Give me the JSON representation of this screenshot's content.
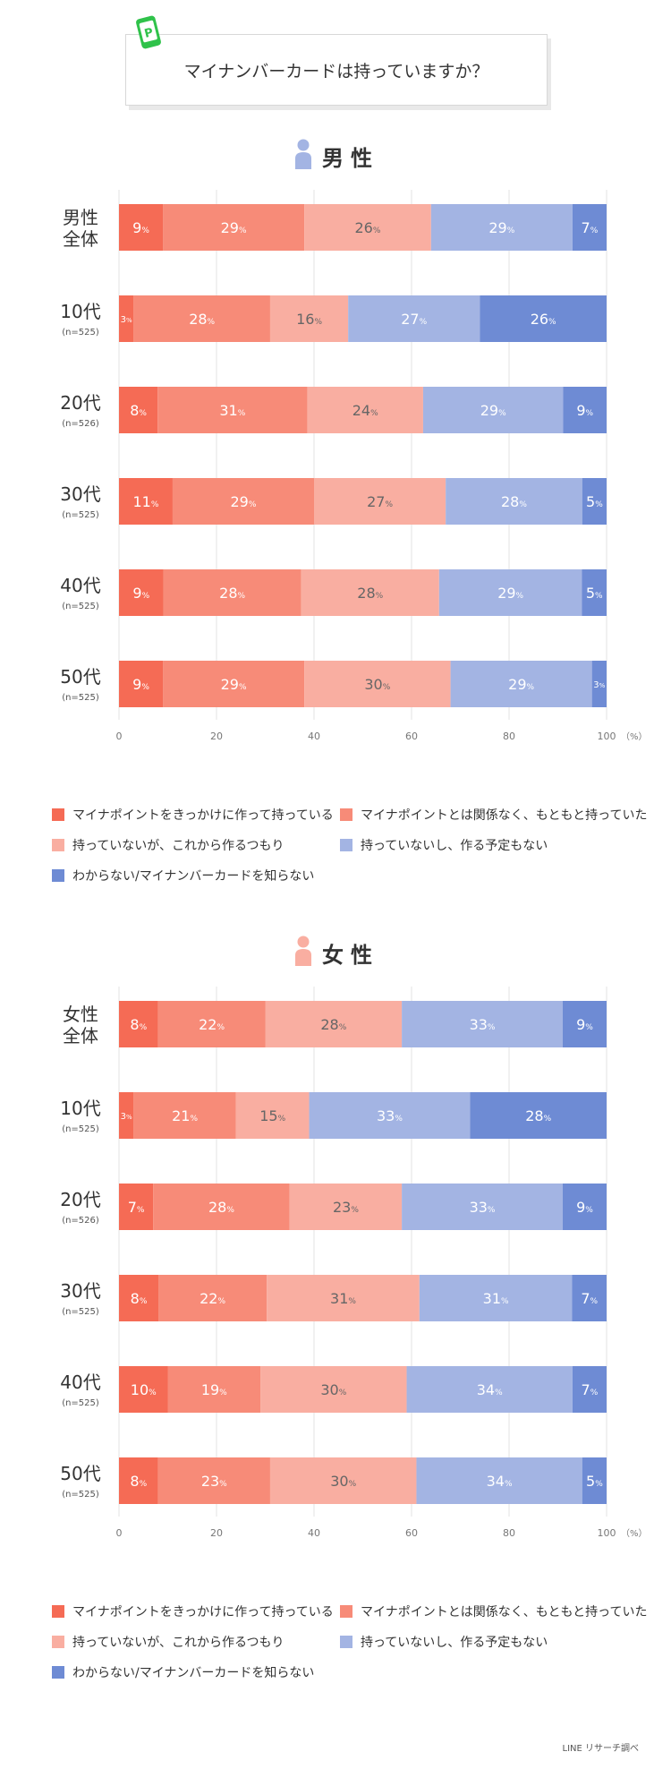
{
  "title": "マイナンバーカードは持っていますか？",
  "source": "LINE リサーチ調べ",
  "colors": [
    "#f56b55",
    "#f78b78",
    "#f9aea1",
    "#a3b4e3",
    "#6e8bd4"
  ],
  "legend": [
    "マイナポイントをきっかけに作って持っている",
    "マイナポイントとは関係なく、もともと持っていた",
    "持っていないが、これから作るつもり",
    "持っていないし、作る予定もない",
    "わからない/マイナンバーカードを知らない"
  ],
  "chart_data": [
    {
      "type": "bar",
      "orientation": "horizontal",
      "stacked": true,
      "title": "男性",
      "xlim": [
        0,
        100
      ],
      "xticks": [
        "0",
        "20",
        "40",
        "60",
        "80",
        "100"
      ],
      "xunit": "（%）",
      "grid": true,
      "categories": [
        {
          "label": "男性\n全体",
          "n": ""
        },
        {
          "label": "10代",
          "n": "(n=525)"
        },
        {
          "label": "20代",
          "n": "(n=526)"
        },
        {
          "label": "30代",
          "n": "(n=525)"
        },
        {
          "label": "40代",
          "n": "(n=525)"
        },
        {
          "label": "50代",
          "n": "(n=525)"
        }
      ],
      "rows": [
        [
          9,
          29,
          26,
          29,
          7
        ],
        [
          3,
          28,
          16,
          27,
          26
        ],
        [
          8,
          31,
          24,
          29,
          9
        ],
        [
          11,
          29,
          27,
          28,
          5
        ],
        [
          9,
          28,
          28,
          29,
          5
        ],
        [
          9,
          29,
          30,
          29,
          3
        ]
      ]
    },
    {
      "type": "bar",
      "orientation": "horizontal",
      "stacked": true,
      "title": "女性",
      "xlim": [
        0,
        100
      ],
      "xticks": [
        "0",
        "20",
        "40",
        "60",
        "80",
        "100"
      ],
      "xunit": "（%）",
      "grid": true,
      "categories": [
        {
          "label": "女性\n全体",
          "n": ""
        },
        {
          "label": "10代",
          "n": "(n=525)"
        },
        {
          "label": "20代",
          "n": "(n=526)"
        },
        {
          "label": "30代",
          "n": "(n=525)"
        },
        {
          "label": "40代",
          "n": "(n=525)"
        },
        {
          "label": "50代",
          "n": "(n=525)"
        }
      ],
      "rows": [
        [
          8,
          22,
          28,
          33,
          9
        ],
        [
          3,
          21,
          15,
          33,
          28
        ],
        [
          7,
          28,
          23,
          33,
          9
        ],
        [
          8,
          22,
          31,
          31,
          7
        ],
        [
          10,
          19,
          30,
          34,
          7
        ],
        [
          8,
          23,
          30,
          34,
          5
        ]
      ]
    }
  ]
}
